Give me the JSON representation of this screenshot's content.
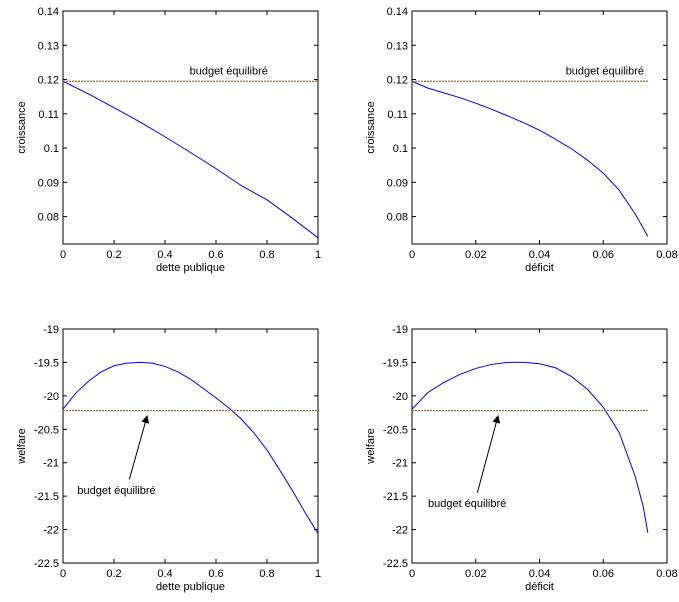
{
  "chart_data": [
    {
      "type": "line",
      "xlabel": "dette publique",
      "ylabel": "croissance",
      "xlim": [
        0,
        1
      ],
      "ylim": [
        0.072,
        0.14
      ],
      "xticks": [
        0,
        0.2,
        0.4,
        0.6,
        0.8,
        1
      ],
      "xtick_labels": [
        "0",
        "0.2",
        "0.4",
        "0.6",
        "0.8",
        "1"
      ],
      "yticks": [
        0.08,
        0.09,
        0.1,
        0.11,
        0.12,
        0.13,
        0.14
      ],
      "ytick_labels": [
        "0.08",
        "0.09",
        "0.1",
        "0.11",
        "0.12",
        "0.13",
        "0.14"
      ],
      "grid": false,
      "series": [
        {
          "color": "#0000ff",
          "x": [
            0,
            0.1,
            0.2,
            0.3,
            0.4,
            0.5,
            0.6,
            0.7,
            0.8,
            0.9,
            1.0
          ],
          "y": [
            0.1195,
            0.1158,
            0.1118,
            0.1077,
            0.1033,
            0.0987,
            0.094,
            0.089,
            0.0849,
            0.0795,
            0.0738
          ]
        },
        {
          "color": "#9a6a3a",
          "style": "dashed",
          "x": [
            0,
            1
          ],
          "y": [
            0.1195,
            0.1195
          ]
        }
      ],
      "annotations": [
        {
          "text": "budget équilibré",
          "x": 0.65,
          "y": 0.1215,
          "anchor": "middle"
        }
      ]
    },
    {
      "type": "line",
      "xlabel": "déficit",
      "ylabel": "croissance",
      "xlim": [
        0,
        0.08
      ],
      "ylim": [
        0.072,
        0.14
      ],
      "xticks": [
        0,
        0.02,
        0.04,
        0.06,
        0.08
      ],
      "xtick_labels": [
        "0",
        "0.02",
        "0.04",
        "0.06",
        "0.08"
      ],
      "yticks": [
        0.08,
        0.09,
        0.1,
        0.11,
        0.12,
        0.13,
        0.14
      ],
      "ytick_labels": [
        "0.08",
        "0.09",
        "0.1",
        "0.11",
        "0.12",
        "0.13",
        "0.14"
      ],
      "grid": false,
      "series": [
        {
          "color": "#0000ff",
          "x": [
            0,
            0.005,
            0.01,
            0.015,
            0.02,
            0.025,
            0.03,
            0.035,
            0.04,
            0.045,
            0.05,
            0.055,
            0.06,
            0.065,
            0.07,
            0.0725,
            0.074
          ],
          "y": [
            0.1195,
            0.1175,
            0.1161,
            0.1147,
            0.1131,
            0.1113,
            0.1094,
            0.1074,
            0.1052,
            0.1026,
            0.0998,
            0.0965,
            0.0927,
            0.0877,
            0.0808,
            0.0767,
            0.0742
          ]
        },
        {
          "color": "#9a6a3a",
          "style": "dashed",
          "x": [
            0,
            0.074
          ],
          "y": [
            0.1195,
            0.1195
          ]
        }
      ],
      "annotations": [
        {
          "text": "budget équilibré",
          "x": 0.0605,
          "y": 0.1215,
          "anchor": "middle"
        }
      ]
    },
    {
      "type": "line",
      "xlabel": "dette publique",
      "ylabel": "welfare",
      "xlim": [
        0,
        1
      ],
      "ylim": [
        -22.5,
        -19
      ],
      "xticks": [
        0,
        0.2,
        0.4,
        0.6,
        0.8,
        1
      ],
      "xtick_labels": [
        "0",
        "0.2",
        "0.4",
        "0.6",
        "0.8",
        "1"
      ],
      "yticks": [
        -22.5,
        -22,
        -21.5,
        -21,
        -20.5,
        -20,
        -19.5,
        -19
      ],
      "ytick_labels": [
        "-22.5",
        "-22",
        "-21.5",
        "-21",
        "-20.5",
        "-20",
        "-19.5",
        "-19"
      ],
      "grid": false,
      "series": [
        {
          "color": "#0000ff",
          "x": [
            0,
            0.05,
            0.1,
            0.15,
            0.2,
            0.25,
            0.3,
            0.35,
            0.4,
            0.45,
            0.5,
            0.55,
            0.6,
            0.65,
            0.7,
            0.75,
            0.8,
            0.85,
            0.9,
            0.95,
            1.0
          ],
          "y": [
            -20.2,
            -19.96,
            -19.78,
            -19.64,
            -19.55,
            -19.51,
            -19.5,
            -19.51,
            -19.56,
            -19.64,
            -19.75,
            -19.89,
            -20.03,
            -20.18,
            -20.35,
            -20.56,
            -20.81,
            -21.11,
            -21.42,
            -21.75,
            -22.06
          ]
        },
        {
          "color": "#9a6a3a",
          "style": "dashed",
          "x": [
            0,
            1
          ],
          "y": [
            -20.22,
            -20.22
          ]
        }
      ],
      "annotations": [
        {
          "text": "budget équilibré",
          "x": 0.21,
          "y": -21.47,
          "anchor": "middle"
        }
      ],
      "arrows": [
        {
          "from": [
            0.26,
            -21.25
          ],
          "to": [
            0.33,
            -20.3
          ]
        }
      ]
    },
    {
      "type": "line",
      "xlabel": "déficit",
      "ylabel": "welfare",
      "xlim": [
        0,
        0.08
      ],
      "ylim": [
        -22.5,
        -19
      ],
      "xticks": [
        0,
        0.02,
        0.04,
        0.06,
        0.08
      ],
      "xtick_labels": [
        "0",
        "0.02",
        "0.04",
        "0.06",
        "0.08"
      ],
      "yticks": [
        -22.5,
        -22,
        -21.5,
        -21,
        -20.5,
        -20,
        -19.5,
        -19
      ],
      "ytick_labels": [
        "-22.5",
        "-22",
        "-21.5",
        "-21",
        "-20.5",
        "-20",
        "-19.5",
        "-19"
      ],
      "grid": false,
      "series": [
        {
          "color": "#0000ff",
          "x": [
            0,
            0.005,
            0.01,
            0.015,
            0.02,
            0.025,
            0.03,
            0.035,
            0.04,
            0.045,
            0.05,
            0.055,
            0.06,
            0.065,
            0.07,
            0.0725,
            0.074
          ],
          "y": [
            -20.2,
            -19.95,
            -19.8,
            -19.68,
            -19.59,
            -19.53,
            -19.5,
            -19.5,
            -19.52,
            -19.58,
            -19.71,
            -19.9,
            -20.17,
            -20.55,
            -21.2,
            -21.65,
            -22.05
          ]
        },
        {
          "color": "#9a6a3a",
          "style": "dashed",
          "x": [
            0,
            0.074
          ],
          "y": [
            -20.22,
            -20.22
          ]
        }
      ],
      "annotations": [
        {
          "text": "budget équilibré",
          "x": 0.0173,
          "y": -21.66,
          "anchor": "middle"
        }
      ],
      "arrows": [
        {
          "from": [
            0.0205,
            -21.45
          ],
          "to": [
            0.027,
            -20.3
          ]
        }
      ]
    }
  ]
}
